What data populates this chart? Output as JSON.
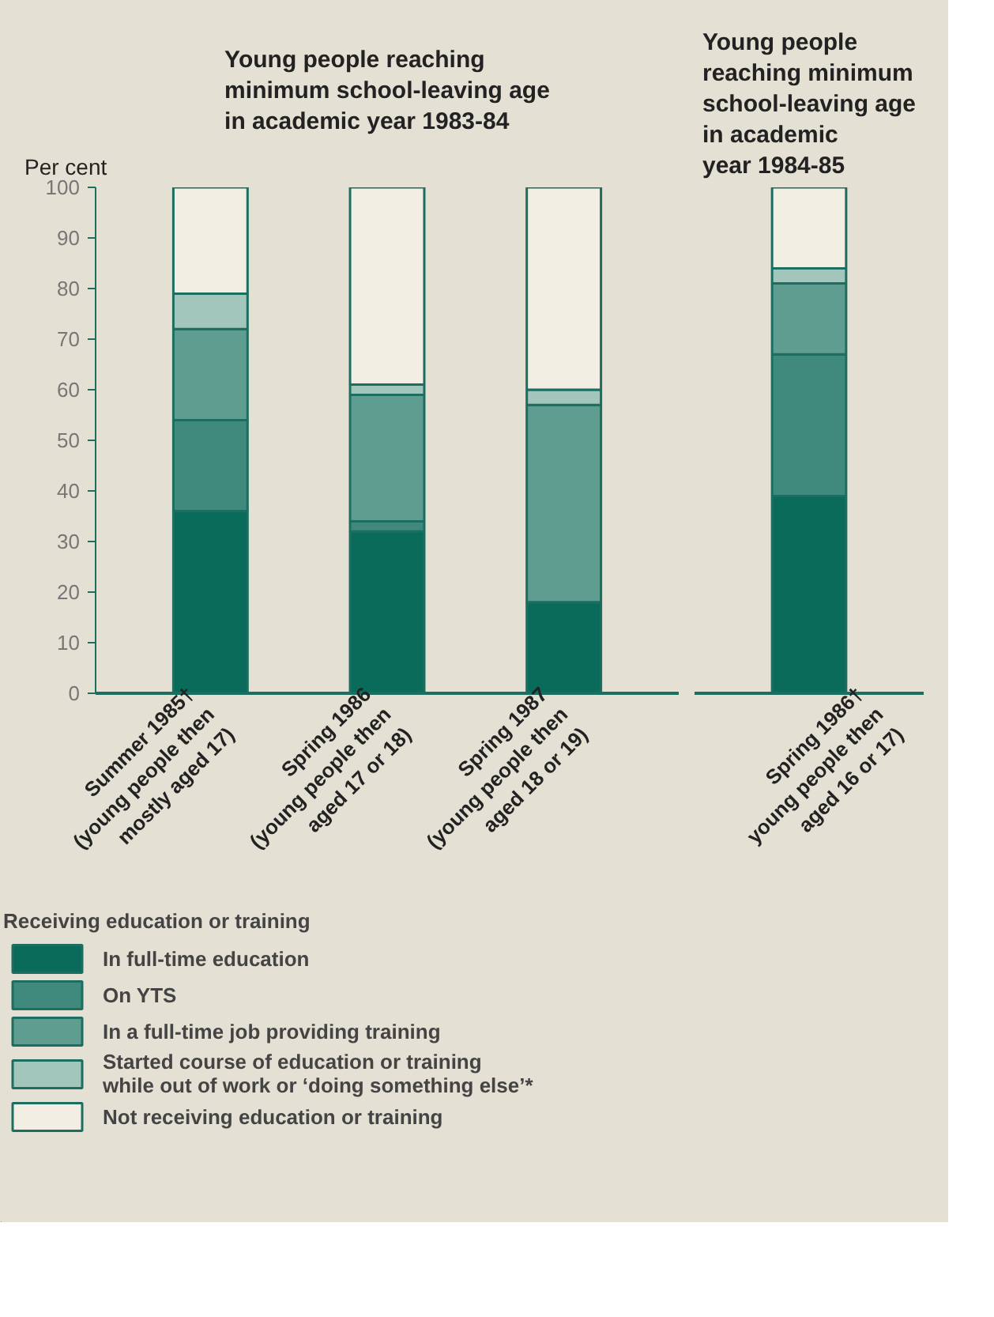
{
  "chart_data": [
    {
      "type": "bar",
      "stacked": true,
      "title": "Young people reaching\nminimum school-leaving age\nin academic year 1983-84",
      "ylabel": "Per cent",
      "categories": [
        "Summer 1985†\n(young people then\nmostly aged 17)",
        "Spring 1986\n(young people then\naged 17 or 18)",
        "Spring 1987\n(young people then\naged 18 or 19)"
      ],
      "ylim": [
        0,
        100
      ],
      "yticks": [
        0,
        10,
        20,
        30,
        40,
        50,
        60,
        70,
        80,
        90,
        100
      ],
      "grid": false,
      "legend": "bottom",
      "legend_title": "Receiving education or training",
      "series": [
        {
          "name": "In full-time education",
          "color": "#0b6b5b",
          "values": [
            36,
            32,
            18
          ]
        },
        {
          "name": "On YTS",
          "color": "#3f8a7c",
          "values": [
            18,
            2,
            0
          ]
        },
        {
          "name": "In a full-time job providing training",
          "color": "#5f9d90",
          "values": [
            18,
            25,
            39
          ]
        },
        {
          "name": "Started course of education or training\nwhile out of work or ‘doing something else’*",
          "color": "#a3c6bc",
          "values": [
            7,
            2,
            3
          ]
        },
        {
          "name": "Not receiving education or training",
          "color": "#f2eee3",
          "values": [
            21,
            39,
            40
          ]
        }
      ]
    },
    {
      "type": "bar",
      "stacked": true,
      "title": "Young people\nreaching minimum\nschool-leaving age\nin academic\nyear 1984-85",
      "categories": [
        "Spring 1986†\nyoung people then\naged 16 or 17)"
      ],
      "ylim": [
        0,
        100
      ],
      "tick_labels": "x",
      "grid": false,
      "series": [
        {
          "color": "#0b6b5b",
          "values": [
            39
          ]
        },
        {
          "color": "#3f8a7c",
          "values": [
            28
          ]
        },
        {
          "color": "#5f9d90",
          "values": [
            14
          ]
        },
        {
          "color": "#a3c6bc",
          "values": [
            3
          ]
        },
        {
          "color": "#f2eee3",
          "values": [
            16
          ]
        }
      ]
    }
  ]
}
